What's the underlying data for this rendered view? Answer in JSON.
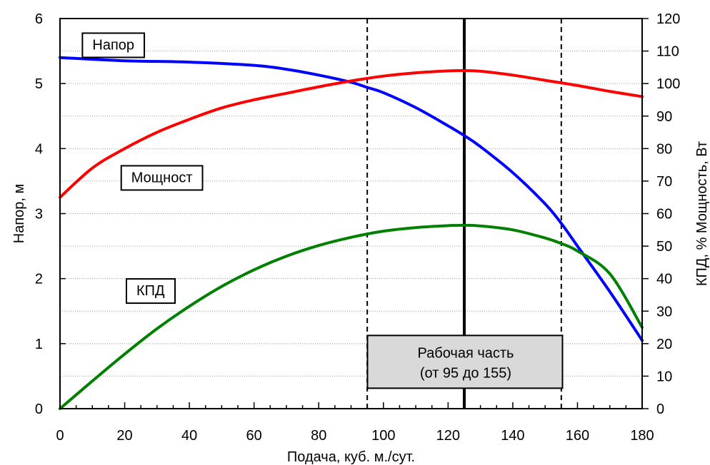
{
  "chart_data": {
    "type": "line",
    "xlabel": "Подача, куб. м./сут.",
    "ylabel_left": "Напор, м",
    "ylabel_right": "КПД, % Мощность, Вт",
    "xlim": [
      0,
      180
    ],
    "ylim_left": [
      0,
      6
    ],
    "ylim_right": [
      0,
      120
    ],
    "x_ticks": [
      0,
      20,
      40,
      60,
      80,
      100,
      120,
      140,
      160,
      180
    ],
    "y_left_ticks": [
      0,
      1,
      2,
      3,
      4,
      5,
      6
    ],
    "y_right_ticks": [
      0,
      10,
      20,
      30,
      40,
      50,
      60,
      70,
      80,
      90,
      100,
      110,
      120
    ],
    "grid": "horizontal dotted",
    "series": [
      {
        "name": "Напор",
        "axis": "left",
        "color": "#0000ff",
        "x": [
          0,
          20,
          40,
          60,
          70,
          80,
          90,
          95,
          100,
          110,
          120,
          125,
          130,
          140,
          150,
          155,
          160,
          170,
          180
        ],
        "y": [
          5.4,
          5.35,
          5.33,
          5.28,
          5.22,
          5.13,
          5.02,
          4.94,
          4.86,
          4.63,
          4.35,
          4.2,
          4.03,
          3.63,
          3.15,
          2.85,
          2.5,
          1.8,
          1.05
        ]
      },
      {
        "name": "Мощност",
        "axis": "right",
        "color": "#ff0000",
        "x": [
          0,
          10,
          20,
          30,
          40,
          50,
          60,
          70,
          80,
          90,
          100,
          110,
          120,
          125,
          130,
          140,
          150,
          160,
          170,
          180
        ],
        "y": [
          65,
          74,
          80,
          85,
          89,
          92.5,
          95,
          97,
          99,
          100.8,
          102.3,
          103.3,
          103.9,
          104,
          103.8,
          102.6,
          101,
          99.4,
          97.6,
          96
        ]
      },
      {
        "name": "КПД",
        "axis": "right",
        "color": "#008000",
        "x": [
          0,
          10,
          20,
          30,
          40,
          50,
          60,
          70,
          80,
          90,
          100,
          110,
          120,
          125,
          130,
          140,
          150,
          155,
          160,
          170,
          180
        ],
        "y": [
          0,
          8.5,
          16.8,
          24.6,
          31.5,
          37.6,
          42.7,
          46.9,
          50.2,
          52.7,
          54.6,
          55.7,
          56.3,
          56.4,
          56.2,
          55,
          52.5,
          50.8,
          48.5,
          41.5,
          25
        ]
      }
    ],
    "vlines": [
      {
        "x": 95,
        "style": "dashed"
      },
      {
        "x": 155,
        "style": "dashed"
      },
      {
        "x": 125,
        "style": "solid"
      }
    ],
    "annotations": [
      {
        "text": "Напор",
        "x": 16.5,
        "y_left": 5.6
      },
      {
        "text": "Мощност",
        "x": 31.5,
        "y_left": 3.56
      },
      {
        "text": "КПД",
        "x": 28,
        "y_left": 1.82
      },
      {
        "text_lines": [
          "Рабочая часть",
          "(от 95 до 155)"
        ],
        "x": 125,
        "y_left": 0.72
      }
    ],
    "colors": {
      "head": "#0000ff",
      "power": "#ff0000",
      "efficiency": "#008000",
      "work_box_fill": "#d9d9d9"
    }
  }
}
